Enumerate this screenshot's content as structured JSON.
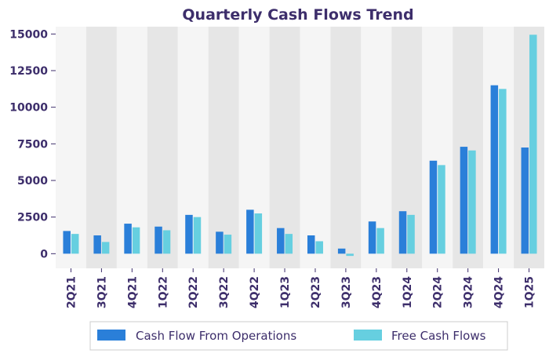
{
  "chart_data": {
    "type": "bar",
    "title": "Quarterly Cash Flows Trend",
    "xlabel": "",
    "ylabel": "",
    "categories": [
      "2Q21",
      "3Q21",
      "4Q21",
      "1Q22",
      "2Q22",
      "3Q22",
      "4Q22",
      "1Q23",
      "2Q23",
      "3Q23",
      "4Q23",
      "1Q24",
      "2Q24",
      "3Q24",
      "4Q24",
      "1Q25"
    ],
    "series": [
      {
        "name": "Cash Flow From Operations",
        "color": "#2a7fd9",
        "values": [
          1550,
          1250,
          2050,
          1850,
          2650,
          1500,
          3000,
          1750,
          1250,
          350,
          2200,
          2900,
          6350,
          7300,
          11500,
          7250
        ]
      },
      {
        "name": "Free Cash Flows",
        "color": "#66cfe0",
        "values": [
          1350,
          800,
          1800,
          1600,
          2500,
          1300,
          2750,
          1350,
          850,
          -150,
          1750,
          2650,
          6050,
          7050,
          11250,
          14950
        ]
      }
    ],
    "ylim": [
      -1000,
      15500
    ],
    "yticks": [
      0,
      2500,
      5000,
      7500,
      10000,
      12500,
      15000
    ],
    "ytick_labels": [
      "0",
      "2500",
      "5000",
      "7500",
      "10000",
      "12500",
      "15000"
    ],
    "grid": false,
    "band_colors": [
      "#f5f5f5",
      "#e6e6e6"
    ],
    "legend": {
      "position": "bottom",
      "entries": [
        "Cash Flow From Operations",
        "Free Cash Flows"
      ]
    }
  }
}
